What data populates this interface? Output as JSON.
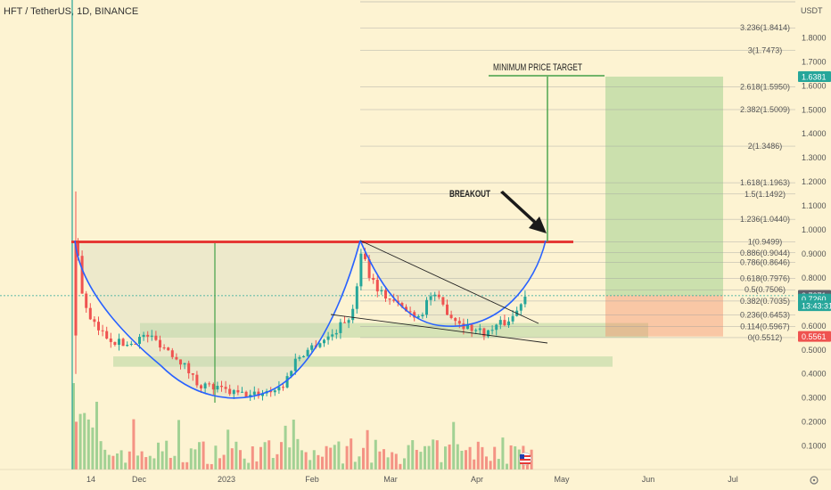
{
  "header": {
    "symbol_title": "HFT / TetherUS, 1D, BINANCE",
    "price_unit": "USDT"
  },
  "chart_data": {
    "type": "candlestick",
    "pair": "HFT / TetherUS",
    "interval": "1D",
    "exchange": "BINANCE",
    "y_axis": {
      "unit": "USDT",
      "range": [
        0.0,
        2.0
      ],
      "ticks": [
        "1.8000",
        "1.7000",
        "1.6000",
        "1.5000",
        "1.4000",
        "1.3000",
        "1.2000",
        "1.1000",
        "1.0000",
        "0.9000",
        "0.8000",
        "0.7000",
        "0.6000",
        "0.5000",
        "0.4000",
        "0.3000",
        "0.2000",
        "0.1000"
      ]
    },
    "x_axis": {
      "ticks": [
        "14",
        "Dec",
        "2023",
        "Feb",
        "Mar",
        "Apr",
        "May",
        "Jun",
        "Jul"
      ]
    },
    "price_labels": [
      {
        "value": "1.6381",
        "color": "#26a69a"
      },
      {
        "value": "0.7271",
        "color": "#5d606b"
      },
      {
        "value": "0.7260",
        "color": "#26a69a"
      },
      {
        "value": "13:43:31",
        "color": "#26a69a"
      },
      {
        "value": "0.5561",
        "color": "#ef5350"
      }
    ],
    "fibonacci": [
      {
        "label": "3.236(1.8414)",
        "price": 1.8414
      },
      {
        "label": "3(1.7473)",
        "price": 1.7473
      },
      {
        "label": "2.618(1.5950)",
        "price": 1.595
      },
      {
        "label": "2.382(1.5009)",
        "price": 1.5009
      },
      {
        "label": "2(1.3486)",
        "price": 1.3486
      },
      {
        "label": "1.618(1.1963)",
        "price": 1.1963
      },
      {
        "label": "1.5(1.1492)",
        "price": 1.1492
      },
      {
        "label": "1.236(1.0440)",
        "price": 1.044
      },
      {
        "label": "1(0.9499)",
        "price": 0.9499
      },
      {
        "label": "0.886(0.9044)",
        "price": 0.9044
      },
      {
        "label": "0.786(0.8646)",
        "price": 0.8646
      },
      {
        "label": "0.618(0.7976)",
        "price": 0.7976
      },
      {
        "label": "0.5(0.7506)",
        "price": 0.7506
      },
      {
        "label": "0.382(0.7035)",
        "price": 0.7035
      },
      {
        "label": "0.236(0.6453)",
        "price": 0.6453
      },
      {
        "label": "0.114(0.5967)",
        "price": 0.5967
      },
      {
        "label": "0(0.5512)",
        "price": 0.5512
      }
    ],
    "annotations": {
      "target": "MINIMUM PRICE TARGET",
      "breakout": "BREAKOUT"
    },
    "resistance_level": 0.95,
    "target_price": 1.6381,
    "stop_price": 0.5561,
    "entry_price": 0.7271,
    "colors": {
      "up": "#26a69a",
      "down": "#ef5350",
      "resistance": "#e53935",
      "cup_curve": "#2962ff",
      "support_zone": "#4caf50",
      "target_line": "#43a047"
    }
  }
}
